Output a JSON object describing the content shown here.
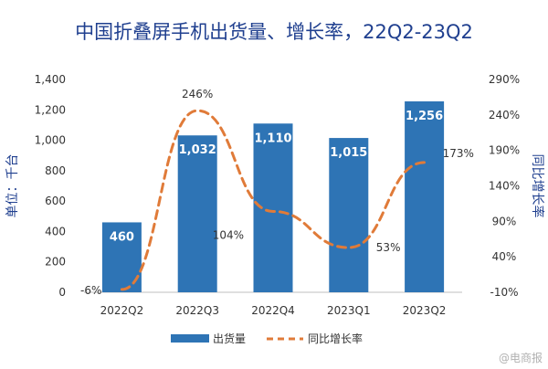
{
  "chart_data": {
    "type": "bar",
    "title": "中国折叠屏手机出货量、增长率，22Q2-23Q2",
    "categories": [
      "2022Q2",
      "2022Q3",
      "2022Q4",
      "2023Q1",
      "2023Q2"
    ],
    "series": [
      {
        "name": "出货量",
        "type": "bar",
        "axis": "left",
        "values": [
          460,
          1032,
          1110,
          1015,
          1256
        ],
        "data_labels": [
          "460",
          "1,032",
          "1,110",
          "1,015",
          "1,256"
        ],
        "color": "#2e74b5"
      },
      {
        "name": "同比增长率",
        "type": "line",
        "axis": "right",
        "style": "dashed",
        "values": [
          -6,
          246,
          104,
          53,
          173
        ],
        "data_labels": [
          "-6%",
          "246%",
          "104%",
          "53%",
          "173%"
        ],
        "color": "#e07b39"
      }
    ],
    "ylabel": "单位：千台",
    "ylim": [
      0,
      1400
    ],
    "yticks": [
      "0",
      "200",
      "400",
      "600",
      "800",
      "1,000",
      "1,200",
      "1,400"
    ],
    "y2label": "同比增长率",
    "y2lim": [
      -10,
      290
    ],
    "y2ticks": [
      "-10%",
      "40%",
      "90%",
      "140%",
      "190%",
      "240%",
      "290%"
    ],
    "legend_position": "bottom",
    "grid": false
  },
  "watermark": "@电商报"
}
